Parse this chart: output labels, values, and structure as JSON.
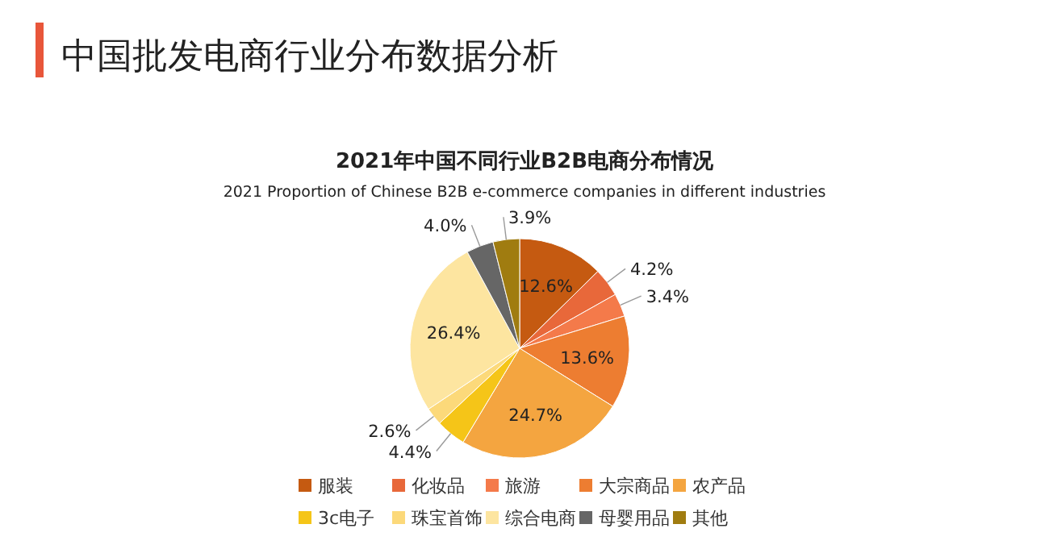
{
  "chart_data": {
    "type": "pie",
    "title": "2021年中国不同行业B2B电商分布情况",
    "subtitle": "2021 Proportion of Chinese B2B e-commerce companies in different industries",
    "annotations": [
      "中国批发电商行业分布数据分析"
    ],
    "categories": [
      "服装",
      "化妆品",
      "旅游",
      "大宗商品",
      "农产品",
      "3c电子",
      "珠宝首饰",
      "综合电商",
      "母婴用品",
      "其他"
    ],
    "values": [
      12.6,
      4.2,
      3.4,
      13.6,
      24.7,
      4.4,
      2.6,
      26.4,
      4.0,
      3.9
    ],
    "colors": [
      "#c55a11",
      "#e8683a",
      "#f47a4a",
      "#ed7d31",
      "#f4a540",
      "#f5c518",
      "#fcd97a",
      "#fde5a0",
      "#666666",
      "#a07c10"
    ],
    "value_labels": [
      "12.6%",
      "4.2%",
      "3.4%",
      "13.6%",
      "24.7%",
      "4.4%",
      "2.6%",
      "26.4%",
      "4.0%",
      "3.9%"
    ],
    "legend": "bottom"
  }
}
